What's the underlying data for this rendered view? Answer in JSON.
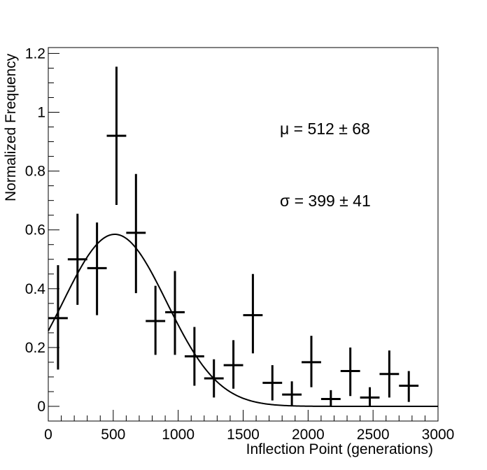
{
  "chart_data": {
    "type": "scatter",
    "xlabel": "Inflection Point (generations)",
    "ylabel": "Normalized Frequency",
    "xlim": [
      0,
      3000
    ],
    "ylim": [
      -0.05,
      1.22
    ],
    "x_ticks": [
      "0",
      "500",
      "1000",
      "1500",
      "2000",
      "2500",
      "3000"
    ],
    "y_ticks": [
      "0",
      "0.2",
      "0.4",
      "0.6",
      "0.8",
      "1",
      "1.2"
    ],
    "annotations": [
      "μ = 512 ± 68",
      "σ = 399 ± 41"
    ],
    "grid": false,
    "series": [
      {
        "kind": "points-with-errors",
        "x_halfwidth": 75,
        "points": [
          {
            "x": 75,
            "y": 0.3,
            "ylo": 0.125,
            "yhi": 0.48
          },
          {
            "x": 225,
            "y": 0.5,
            "ylo": 0.345,
            "yhi": 0.655
          },
          {
            "x": 375,
            "y": 0.47,
            "ylo": 0.31,
            "yhi": 0.625
          },
          {
            "x": 525,
            "y": 0.92,
            "ylo": 0.685,
            "yhi": 1.155
          },
          {
            "x": 675,
            "y": 0.59,
            "ylo": 0.385,
            "yhi": 0.79
          },
          {
            "x": 825,
            "y": 0.29,
            "ylo": 0.175,
            "yhi": 0.41
          },
          {
            "x": 975,
            "y": 0.32,
            "ylo": 0.175,
            "yhi": 0.46
          },
          {
            "x": 1125,
            "y": 0.17,
            "ylo": 0.07,
            "yhi": 0.27
          },
          {
            "x": 1275,
            "y": 0.095,
            "ylo": 0.03,
            "yhi": 0.16
          },
          {
            "x": 1425,
            "y": 0.14,
            "ylo": 0.06,
            "yhi": 0.225
          },
          {
            "x": 1575,
            "y": 0.31,
            "ylo": 0.18,
            "yhi": 0.45
          },
          {
            "x": 1725,
            "y": 0.08,
            "ylo": 0.02,
            "yhi": 0.14
          },
          {
            "x": 1875,
            "y": 0.04,
            "ylo": 0.0,
            "yhi": 0.085
          },
          {
            "x": 2025,
            "y": 0.15,
            "ylo": 0.065,
            "yhi": 0.24
          },
          {
            "x": 2175,
            "y": 0.025,
            "ylo": 0.0,
            "yhi": 0.055
          },
          {
            "x": 2325,
            "y": 0.12,
            "ylo": 0.035,
            "yhi": 0.2
          },
          {
            "x": 2475,
            "y": 0.03,
            "ylo": 0.0,
            "yhi": 0.065
          },
          {
            "x": 2625,
            "y": 0.11,
            "ylo": 0.03,
            "yhi": 0.19
          },
          {
            "x": 2775,
            "y": 0.07,
            "ylo": 0.015,
            "yhi": 0.12
          }
        ]
      },
      {
        "kind": "gaussian-fit",
        "mu": 512,
        "sigma": 399,
        "amplitude": 0.585,
        "x_range": [
          0,
          3000
        ]
      }
    ]
  }
}
